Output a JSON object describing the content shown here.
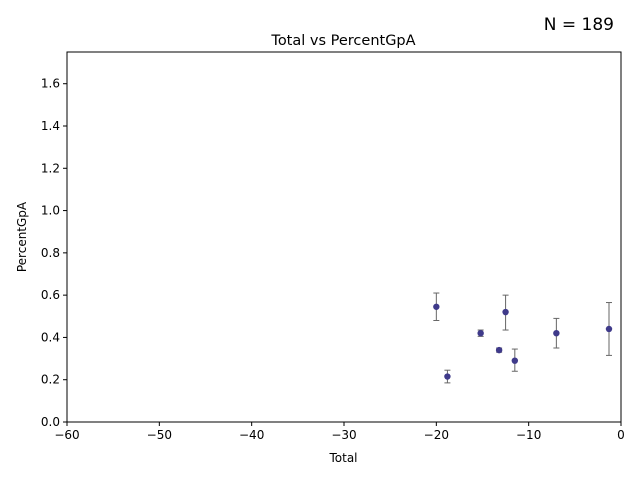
{
  "chart_data": {
    "type": "scatter",
    "title": "Total vs PercentGpA",
    "xlabel": "Total",
    "ylabel": "PercentGpA",
    "annotation": "N = 189",
    "xlim": [
      -60,
      0
    ],
    "ylim": [
      0,
      1.75
    ],
    "xticks": [
      -60,
      -50,
      -40,
      -30,
      -20,
      -10,
      0
    ],
    "xtick_labels": [
      "−60",
      "−50",
      "−40",
      "−30",
      "−20",
      "−10",
      "0"
    ],
    "yticks": [
      0.0,
      0.2,
      0.4,
      0.6,
      0.8,
      1.0,
      1.2,
      1.4,
      1.6
    ],
    "ytick_labels": [
      "0.0",
      "0.2",
      "0.4",
      "0.6",
      "0.8",
      "1.0",
      "1.2",
      "1.4",
      "1.6"
    ],
    "grid": false,
    "marker_color": "#3f3a8a",
    "errorbar_color": "#666666",
    "points": [
      {
        "x": -20.0,
        "y": 0.545,
        "lo": 0.48,
        "hi": 0.61
      },
      {
        "x": -18.8,
        "y": 0.215,
        "lo": 0.185,
        "hi": 0.245
      },
      {
        "x": -15.2,
        "y": 0.42,
        "lo": 0.405,
        "hi": 0.435
      },
      {
        "x": -13.2,
        "y": 0.34,
        "lo": 0.33,
        "hi": 0.35
      },
      {
        "x": -12.5,
        "y": 0.52,
        "lo": 0.435,
        "hi": 0.6
      },
      {
        "x": -11.5,
        "y": 0.29,
        "lo": 0.24,
        "hi": 0.345
      },
      {
        "x": -7.0,
        "y": 0.42,
        "lo": 0.35,
        "hi": 0.49
      },
      {
        "x": -1.3,
        "y": 0.44,
        "lo": 0.315,
        "hi": 0.565
      }
    ]
  }
}
